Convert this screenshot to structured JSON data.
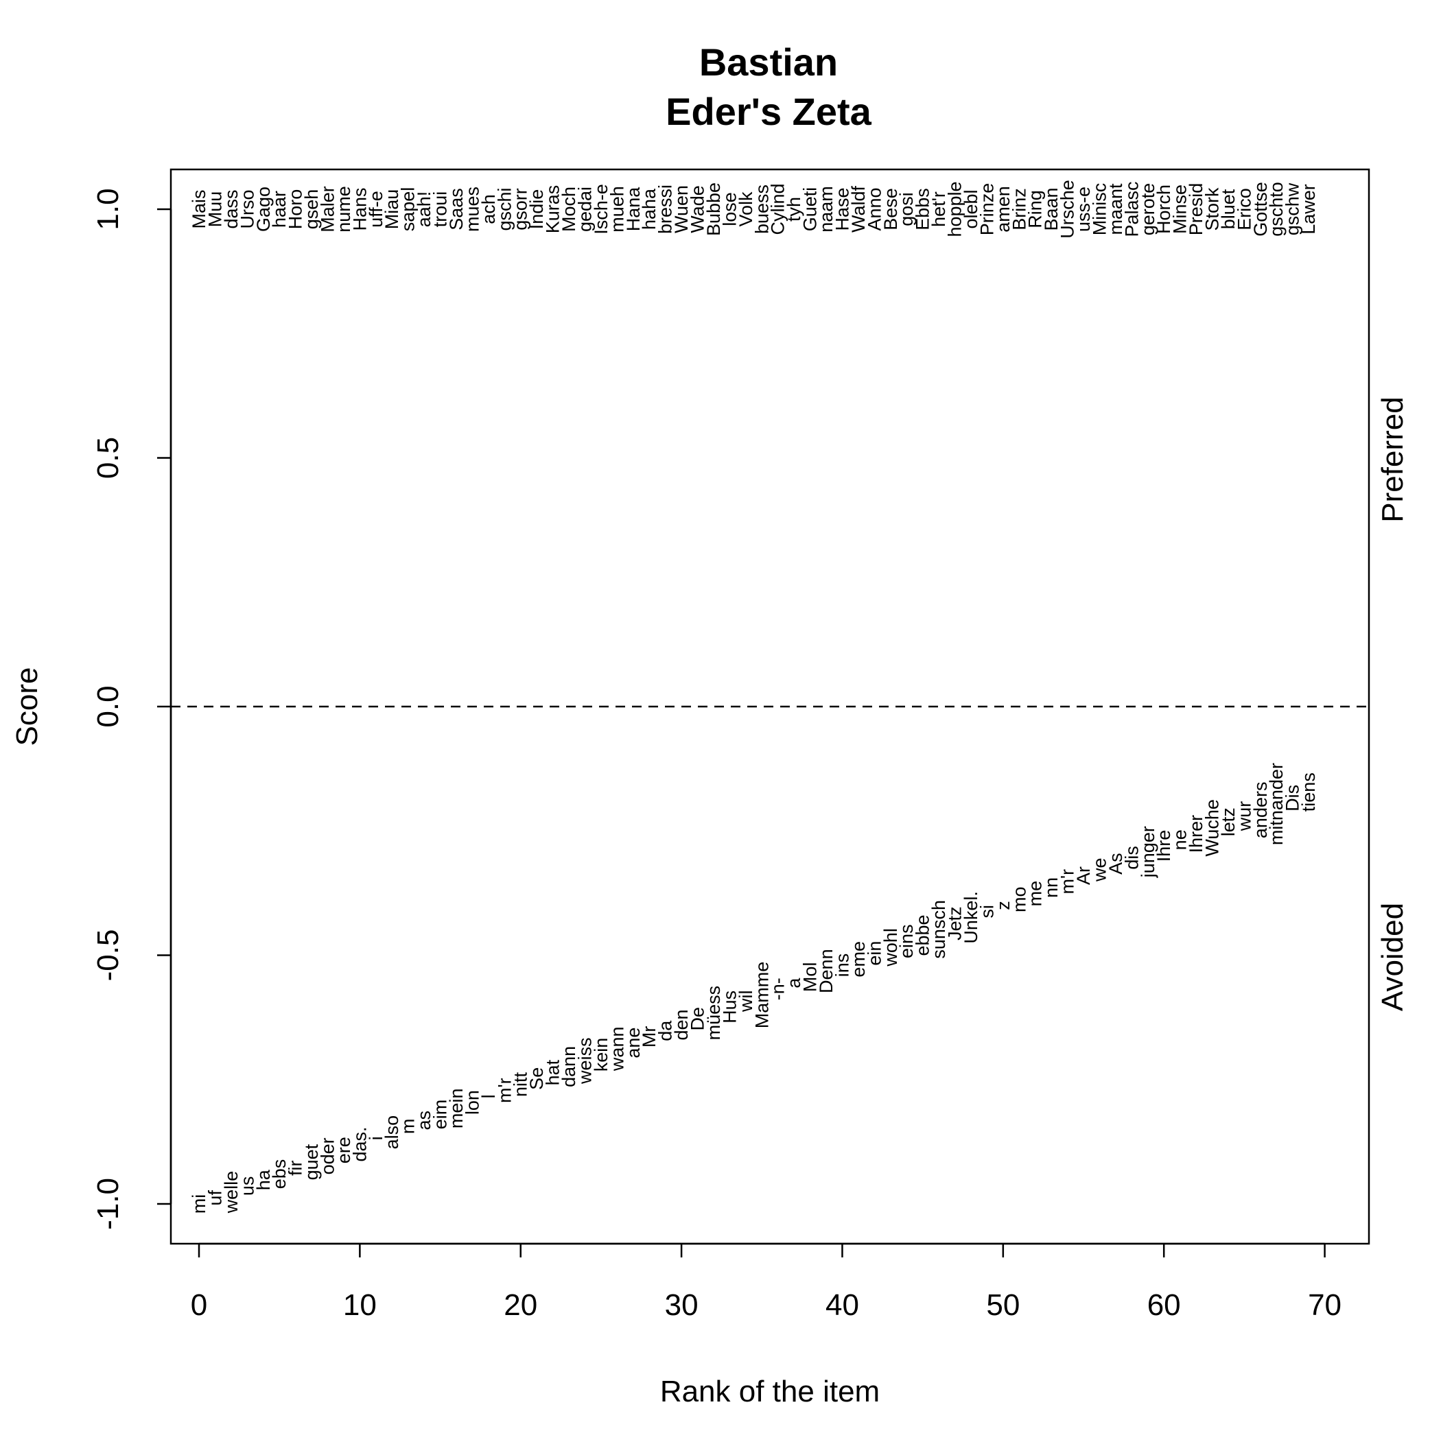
{
  "chart_data": {
    "type": "scatter",
    "title": "Bastian",
    "subtitle": "Eder's Zeta",
    "xlabel": "Rank of the item",
    "ylabel": "Score",
    "xlim": [
      -1.75,
      72.75
    ],
    "ylim": [
      -1.08,
      1.08
    ],
    "x_ticks": [
      "0",
      "10",
      "20",
      "30",
      "40",
      "50",
      "60",
      "70"
    ],
    "y_ticks": [
      "-1.0",
      "-0.5",
      "0.0",
      "0.5",
      "1.0"
    ],
    "reference_line": {
      "y": 0,
      "style": "dashed"
    },
    "side_labels": {
      "upper": "Preferred",
      "lower": "Avoided"
    },
    "preferred": {
      "x_start": 0,
      "score": 1.0,
      "words": [
        "Mais",
        "Muu",
        "dass",
        "Urso",
        "Gago",
        "haar",
        "Horo",
        "gseh",
        "Maler",
        "nume",
        "Hans",
        "uff-e",
        "Miau",
        "sapel",
        "aah!",
        "troui",
        "Saas",
        "mues",
        "ach",
        "gschi",
        "gsorr",
        "Indie",
        "Kuras",
        "Moch",
        "gedai",
        "Isch-e",
        "mueh",
        "Hana",
        "haha",
        "bressi",
        "Wuen",
        "Wade",
        "Bubbe",
        "lose",
        "Volk",
        "buess",
        "Cylind",
        "tyh",
        "Gueti",
        "naam",
        "Hase",
        "Waldf",
        "Anno",
        "Bese",
        "gosi",
        "Ebbs",
        "het'r",
        "hopple",
        "olebl",
        "Prinze",
        "amen",
        "Brinz",
        "Ring",
        "Baan",
        "Ursche",
        "uss-e",
        "Minisc",
        "maant",
        "Palasc",
        "gerote",
        "Horch",
        "Minse",
        "Presid",
        "Stork",
        "bluet",
        "Erico",
        "Gottse",
        "gschto",
        "gschw",
        "Lawer"
      ]
    },
    "avoided": {
      "x_start": 0,
      "scores": [
        -1.0,
        -0.988,
        -0.976,
        -0.964,
        -0.952,
        -0.94,
        -0.928,
        -0.916,
        -0.904,
        -0.892,
        -0.88,
        -0.868,
        -0.856,
        -0.844,
        -0.832,
        -0.82,
        -0.808,
        -0.796,
        -0.784,
        -0.772,
        -0.76,
        -0.748,
        -0.736,
        -0.724,
        -0.712,
        -0.7,
        -0.688,
        -0.676,
        -0.664,
        -0.652,
        -0.64,
        -0.628,
        -0.616,
        -0.604,
        -0.592,
        -0.58,
        -0.568,
        -0.556,
        -0.544,
        -0.532,
        -0.52,
        -0.508,
        -0.496,
        -0.484,
        -0.472,
        -0.46,
        -0.448,
        -0.436,
        -0.424,
        -0.412,
        -0.4,
        -0.388,
        -0.376,
        -0.364,
        -0.352,
        -0.34,
        -0.328,
        -0.316,
        -0.304,
        -0.292,
        -0.28,
        -0.268,
        -0.256,
        -0.244,
        -0.232,
        -0.22,
        -0.208,
        -0.196,
        -0.184,
        -0.172
      ],
      "words": [
        "mi",
        "uf",
        "welle",
        "us",
        "ha",
        "ebs",
        "fir",
        "guet",
        "oder",
        "ere",
        "das.",
        "i",
        "also",
        "m",
        "as",
        "eim",
        "mein",
        "lon",
        "l",
        "m'r",
        "nitt",
        "Se",
        "hat",
        "dann",
        "weiss",
        "kein",
        "wann",
        "ane",
        "Mr",
        "da",
        "den",
        "De",
        "müess",
        "Hus",
        "wil",
        "Mamme",
        "-n-",
        "a",
        "Mol",
        "Denn",
        "ins",
        "eme",
        "ein",
        "wohl",
        "eins",
        "ebbe",
        "sunsch",
        "Jetz",
        "Unkel.",
        "si",
        "z",
        "mo",
        "me",
        "nn",
        "m'r",
        "Ar",
        "we",
        "As",
        "dis",
        "junger",
        "Ihre",
        "ne",
        "Ihrer",
        "Wuche",
        "letz",
        "wur",
        "anders",
        "mitnander",
        "Dis",
        "tiens"
      ]
    }
  }
}
